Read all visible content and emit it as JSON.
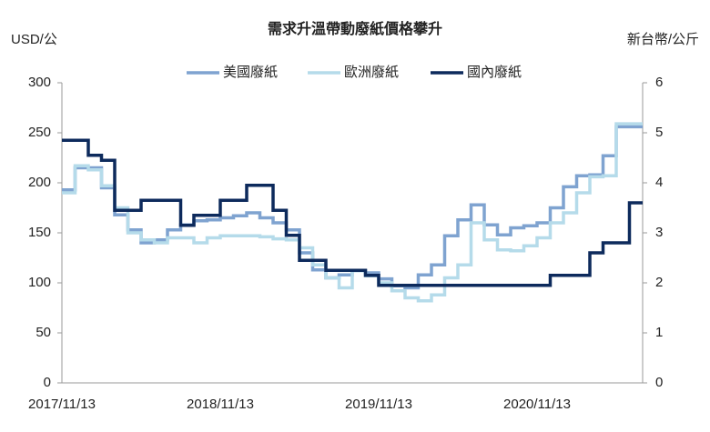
{
  "chart_data": {
    "type": "line",
    "step": true,
    "title": "需求升溫帶動廢紙價格攀升",
    "y_label": "USD/公",
    "y2_label": "新台幣/公斤",
    "categories": [
      "2017/11/13",
      null,
      null,
      null,
      null,
      null,
      null,
      null,
      null,
      null,
      null,
      null,
      "2018/11/13",
      null,
      null,
      null,
      null,
      null,
      null,
      null,
      null,
      null,
      null,
      null,
      "2019/11/13",
      null,
      null,
      null,
      null,
      null,
      null,
      null,
      null,
      null,
      null,
      null,
      "2020/11/13",
      null,
      null,
      null,
      null,
      null,
      null,
      null,
      null
    ],
    "ylim": [
      0,
      300
    ],
    "yticks": [
      0,
      50,
      100,
      150,
      200,
      250,
      300
    ],
    "y2lim": [
      0,
      6
    ],
    "y2ticks": [
      0,
      1,
      2,
      3,
      4,
      5,
      6
    ],
    "legend": "top",
    "series": [
      {
        "name": "美國廢紙",
        "color": "#7fa3d0",
        "values": [
          193,
          215,
          215,
          195,
          168,
          153,
          140,
          143,
          153,
          158,
          162,
          163,
          165,
          167,
          170,
          165,
          160,
          153,
          130,
          113,
          105,
          108,
          112,
          110,
          104,
          97,
          95,
          108,
          118,
          147,
          163,
          178,
          158,
          148,
          155,
          157,
          160,
          175,
          196,
          207,
          208,
          227,
          256,
          256,
          256
        ]
      },
      {
        "name": "歐洲廢紙",
        "color": "#b5dbea",
        "values": [
          190,
          217,
          213,
          197,
          175,
          150,
          143,
          140,
          145,
          145,
          140,
          145,
          147,
          147,
          147,
          146,
          144,
          143,
          135,
          118,
          105,
          95,
          112,
          107,
          100,
          92,
          85,
          82,
          88,
          105,
          118,
          160,
          143,
          133,
          132,
          137,
          145,
          160,
          170,
          190,
          206,
          207,
          259,
          259,
          259
        ]
      },
      {
        "name": "國內廢紙",
        "color": "#0d2a5c",
        "axis": "y2",
        "values": [
          4.85,
          4.85,
          4.55,
          4.45,
          3.45,
          3.45,
          3.65,
          3.65,
          3.65,
          3.15,
          3.35,
          3.35,
          3.65,
          3.65,
          3.95,
          3.95,
          3.45,
          2.95,
          2.45,
          2.45,
          2.25,
          2.25,
          2.25,
          2.15,
          1.95,
          1.95,
          1.95,
          1.95,
          1.95,
          1.95,
          1.95,
          1.95,
          1.95,
          1.95,
          1.95,
          1.95,
          1.95,
          2.15,
          2.15,
          2.15,
          2.6,
          2.8,
          2.8,
          3.6,
          3.6
        ]
      }
    ]
  }
}
